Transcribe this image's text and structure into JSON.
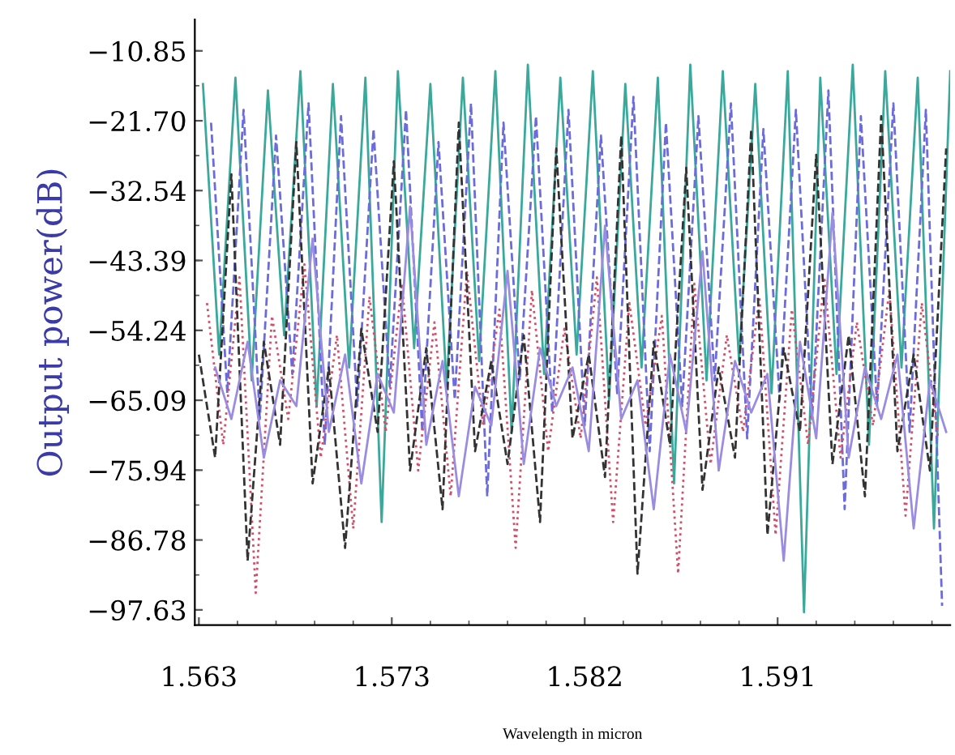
{
  "chart_data": {
    "type": "line",
    "xlabel": "Wavelength in micron",
    "ylabel": "Output power(dB)",
    "xlim": [
      1.5628,
      1.6
    ],
    "ylim": [
      -100,
      -6
    ],
    "xticks": [
      {
        "value": 1.563,
        "label": "1.563"
      },
      {
        "value": 1.5725,
        "label": "1.573"
      },
      {
        "value": 1.582,
        "label": "1.582"
      },
      {
        "value": 1.5915,
        "label": "1.591"
      }
    ],
    "yticks": [
      {
        "value": -97.63,
        "label": "−97.63"
      },
      {
        "value": -86.78,
        "label": "−86.78"
      },
      {
        "value": -75.94,
        "label": "−75.94"
      },
      {
        "value": -65.09,
        "label": "−65.09"
      },
      {
        "value": -54.24,
        "label": "−54.24"
      },
      {
        "value": -43.39,
        "label": "−43.39"
      },
      {
        "value": -32.54,
        "label": "−32.54"
      },
      {
        "value": -21.7,
        "label": "−21.70"
      },
      {
        "value": -10.85,
        "label": "−10.85"
      }
    ],
    "grid": false,
    "marker": "none",
    "series": [
      {
        "color": "#3aa89a",
        "line_style": "solid",
        "x": [
          1.5632,
          1.564,
          1.5648,
          1.5656,
          1.5664,
          1.5672,
          1.568,
          1.5688,
          1.5696,
          1.5704,
          1.5712,
          1.572,
          1.5728,
          1.5736,
          1.5744,
          1.5752,
          1.576,
          1.5768,
          1.5776,
          1.5784,
          1.5792,
          1.58,
          1.5808,
          1.5816,
          1.5824,
          1.5832,
          1.584,
          1.5848,
          1.5856,
          1.5864,
          1.5872,
          1.588,
          1.5888,
          1.5896,
          1.5904,
          1.5912,
          1.592,
          1.5928,
          1.5936,
          1.5944,
          1.5952,
          1.596,
          1.5968,
          1.5976,
          1.5984,
          1.5992,
          1.6
        ],
        "values": [
          -16,
          -58,
          -15,
          -62,
          -17,
          -55,
          -14,
          -66,
          -16,
          -60,
          -15,
          -84,
          -14,
          -57,
          -16,
          -63,
          -15,
          -59,
          -14,
          -70,
          -13,
          -61,
          -15,
          -58,
          -14,
          -65,
          -16,
          -60,
          -15,
          -78,
          -13,
          -62,
          -14,
          -59,
          -16,
          -64,
          -14,
          -98,
          -15,
          -61,
          -13,
          -72,
          -14,
          -60,
          -15,
          -85,
          -14
        ]
      },
      {
        "color": "#6b6bdc",
        "line_style": "dashed",
        "x": [
          1.5636,
          1.5644,
          1.5652,
          1.566,
          1.5668,
          1.5676,
          1.5684,
          1.5692,
          1.57,
          1.5708,
          1.5716,
          1.5724,
          1.5732,
          1.574,
          1.5748,
          1.5756,
          1.5764,
          1.5772,
          1.578,
          1.5788,
          1.5796,
          1.5804,
          1.5812,
          1.582,
          1.5828,
          1.5836,
          1.5844,
          1.5852,
          1.586,
          1.5868,
          1.5876,
          1.5884,
          1.5892,
          1.59,
          1.5908,
          1.5916,
          1.5924,
          1.5932,
          1.594,
          1.5948,
          1.5956,
          1.5964,
          1.5972,
          1.598,
          1.5988,
          1.5996
        ],
        "values": [
          -22,
          -64,
          -20,
          -68,
          -24,
          -61,
          -19,
          -72,
          -21,
          -66,
          -23,
          -63,
          -20,
          -70,
          -25,
          -65,
          -19,
          -80,
          -22,
          -62,
          -21,
          -67,
          -20,
          -69,
          -24,
          -64,
          -18,
          -73,
          -22,
          -66,
          -21,
          -62,
          -19,
          -71,
          -23,
          -65,
          -20,
          -68,
          -17,
          -82,
          -21,
          -66,
          -19,
          -70,
          -20,
          -97
        ]
      },
      {
        "color": "#d0506a",
        "line_style": "dotted",
        "x": [
          1.5634,
          1.5642,
          1.565,
          1.5658,
          1.5666,
          1.5674,
          1.5682,
          1.569,
          1.5698,
          1.5706,
          1.5714,
          1.5722,
          1.573,
          1.5738,
          1.5746,
          1.5754,
          1.5762,
          1.577,
          1.5778,
          1.5786,
          1.5794,
          1.5802,
          1.581,
          1.5818,
          1.5826,
          1.5834,
          1.5842,
          1.585,
          1.5858,
          1.5866,
          1.5874,
          1.5882,
          1.589,
          1.5898,
          1.5906,
          1.5914,
          1.5922,
          1.593,
          1.5938,
          1.5946,
          1.5954,
          1.5962,
          1.597,
          1.5978,
          1.5986,
          1.5994
        ],
        "values": [
          -50,
          -72,
          -46,
          -95,
          -52,
          -68,
          -44,
          -74,
          -55,
          -85,
          -49,
          -70,
          -47,
          -76,
          -53,
          -80,
          -45,
          -69,
          -51,
          -88,
          -48,
          -73,
          -54,
          -71,
          -46,
          -84,
          -50,
          -69,
          -52,
          -92,
          -47,
          -75,
          -55,
          -70,
          -49,
          -86,
          -51,
          -72,
          -46,
          -74,
          -53,
          -69,
          -48,
          -83,
          -50,
          -71
        ]
      },
      {
        "color": "#333333",
        "line_style": "dashed",
        "x": [
          1.563,
          1.5638,
          1.5646,
          1.5654,
          1.5662,
          1.567,
          1.5678,
          1.5686,
          1.5694,
          1.5702,
          1.571,
          1.5718,
          1.5726,
          1.5734,
          1.5742,
          1.575,
          1.5758,
          1.5766,
          1.5774,
          1.5782,
          1.579,
          1.5798,
          1.5806,
          1.5814,
          1.5822,
          1.583,
          1.5838,
          1.5846,
          1.5854,
          1.5862,
          1.587,
          1.5878,
          1.5886,
          1.5894,
          1.5902,
          1.591,
          1.5918,
          1.5926,
          1.5934,
          1.5942,
          1.595,
          1.5958,
          1.5966,
          1.5974,
          1.5982,
          1.599,
          1.5998
        ],
        "values": [
          -58,
          -74,
          -30,
          -90,
          -56,
          -72,
          -25,
          -78,
          -60,
          -88,
          -54,
          -70,
          -28,
          -76,
          -57,
          -82,
          -22,
          -73,
          -59,
          -75,
          -55,
          -84,
          -26,
          -71,
          -58,
          -77,
          -24,
          -92,
          -56,
          -72,
          -29,
          -79,
          -60,
          -74,
          -23,
          -86,
          -57,
          -70,
          -27,
          -75,
          -55,
          -80,
          -21,
          -73,
          -58,
          -76,
          -26
        ]
      },
      {
        "color": "#9a8ce0",
        "line_style": "solid",
        "x": [
          1.5638,
          1.5646,
          1.5654,
          1.5662,
          1.567,
          1.5678,
          1.5686,
          1.5694,
          1.5702,
          1.571,
          1.5718,
          1.5726,
          1.5734,
          1.5742,
          1.575,
          1.5758,
          1.5766,
          1.5774,
          1.5782,
          1.579,
          1.5798,
          1.5806,
          1.5814,
          1.5822,
          1.583,
          1.5838,
          1.5846,
          1.5854,
          1.5862,
          1.587,
          1.5878,
          1.5886,
          1.5894,
          1.5902,
          1.591,
          1.5918,
          1.5926,
          1.5934,
          1.5942,
          1.595,
          1.5958,
          1.5966,
          1.5974,
          1.5982,
          1.599,
          1.5998
        ],
        "values": [
          -60,
          -68,
          -56,
          -74,
          -62,
          -66,
          -40,
          -70,
          -58,
          -78,
          -61,
          -67,
          -35,
          -72,
          -59,
          -80,
          -63,
          -69,
          -45,
          -75,
          -57,
          -66,
          -60,
          -73,
          -38,
          -68,
          -62,
          -82,
          -58,
          -70,
          -42,
          -76,
          -59,
          -67,
          -61,
          -90,
          -56,
          -71,
          -36,
          -74,
          -60,
          -68,
          -58,
          -85,
          -62,
          -70
        ]
      }
    ]
  }
}
